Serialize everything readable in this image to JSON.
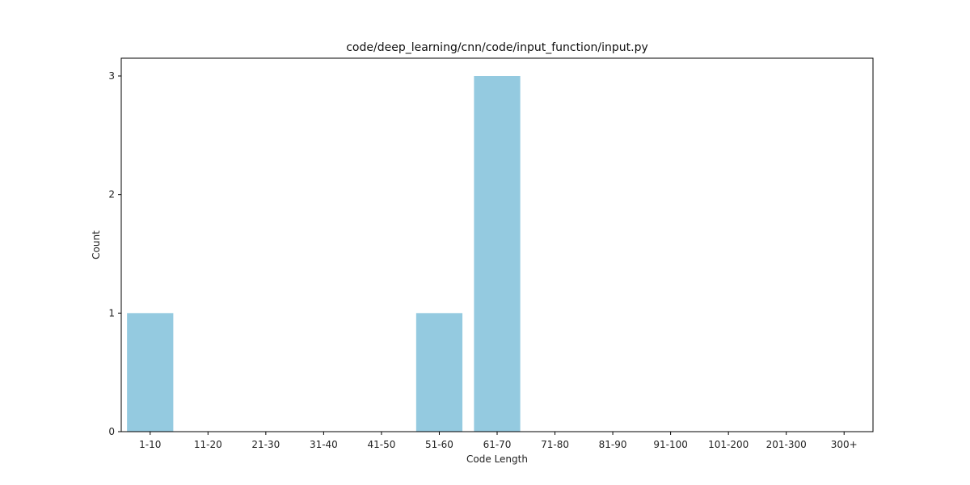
{
  "chart_data": {
    "type": "bar",
    "title": "code/deep_learning/cnn/code/input_function/input.py",
    "xlabel": "Code Length",
    "ylabel": "Count",
    "categories": [
      "1-10",
      "11-20",
      "21-30",
      "31-40",
      "41-50",
      "51-60",
      "61-70",
      "71-80",
      "81-90",
      "91-100",
      "101-200",
      "201-300",
      "300+"
    ],
    "values": [
      1,
      0,
      0,
      0,
      0,
      1,
      3,
      0,
      0,
      0,
      0,
      0,
      0
    ],
    "yticks": [
      0,
      1,
      2,
      3
    ],
    "ylim": [
      0,
      3.15
    ],
    "grid": false,
    "bar_color": "#94cae0"
  }
}
